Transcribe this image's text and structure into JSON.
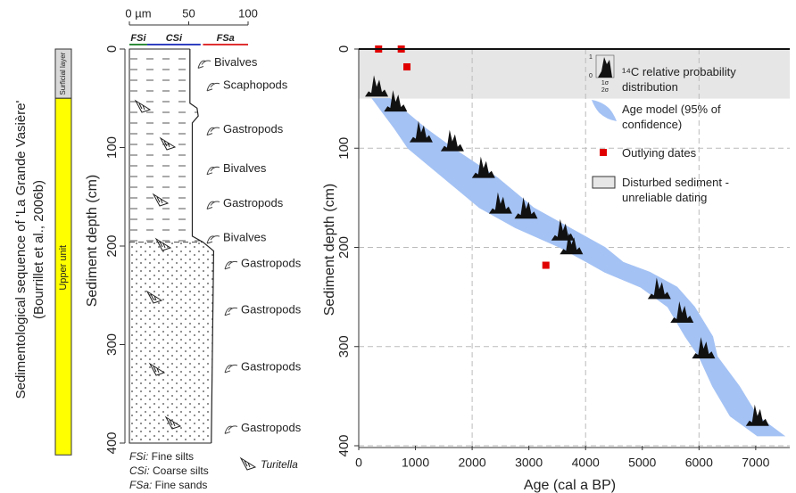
{
  "log_panel": {
    "title_lines": [
      "Sedimentological sequence of  'La Grande Vasière'",
      "(Bourrillet et al., 2006b)"
    ],
    "units": [
      {
        "label": "Surficial layer",
        "top": 0,
        "bottom": 50,
        "color": "#d9d9d9"
      },
      {
        "label": "Upper unit",
        "top": 50,
        "bottom": 412,
        "color": "#ffff00"
      }
    ],
    "grain_lim": [
      0,
      100
    ],
    "grain_ticks": [
      {
        "value": 0,
        "label": "0 µm"
      },
      50,
      100
    ],
    "grain_classes": [
      {
        "name": "FSi",
        "color": "#2e8b3a",
        "range": [
          0,
          15
        ]
      },
      {
        "name": "CSi",
        "color": "#3040c0",
        "range": [
          15,
          60
        ]
      },
      {
        "name": "FSa",
        "color": "#e03030",
        "range": [
          62,
          100
        ]
      }
    ],
    "depth_label": "Sediment depth (cm)",
    "depth_lim": [
      0,
      400
    ],
    "depth_ticks": [
      0,
      100,
      200,
      300,
      400
    ],
    "sand_top": 196,
    "grain_profile": {
      "depth": [
        0,
        55,
        60,
        68,
        75,
        190,
        196,
        205,
        300,
        400
      ],
      "size": [
        51,
        51,
        57,
        58,
        53,
        53,
        62,
        71,
        70,
        69
      ]
    },
    "fossils": [
      {
        "label": "Bivalves",
        "depth": 14
      },
      {
        "label": "Scaphopods",
        "depth": 37
      },
      {
        "label": "Gastropods",
        "depth": 82
      },
      {
        "label": "Bivalves",
        "depth": 122
      },
      {
        "label": "Gastropods",
        "depth": 157
      },
      {
        "label": "Bivalves",
        "depth": 192
      },
      {
        "label": "Gastropods",
        "depth": 218
      },
      {
        "label": "Gastropods",
        "depth": 265
      },
      {
        "label": "Gastropods",
        "depth": 323
      },
      {
        "label": "Gastropods",
        "depth": 385
      }
    ],
    "legend": [
      {
        "abbr": "FSi:",
        "text": " Fine silts"
      },
      {
        "abbr": "CSi:",
        "text": " Coarse silts"
      },
      {
        "abbr": "FSa:",
        "text": " Fine sands"
      }
    ],
    "turitella": "Turitella"
  },
  "chart_data": {
    "type": "area",
    "xlabel": "Age (cal a BP)",
    "ylabel": "Sediment depth (cm)",
    "xlim": [
      0,
      7600
    ],
    "xticks": [
      0,
      1000,
      2000,
      3000,
      4000,
      5000,
      6000,
      7000
    ],
    "x_grid": [
      2000,
      4000,
      6000
    ],
    "ylim": [
      0,
      400
    ],
    "yticks": [
      0,
      100,
      200,
      300,
      400
    ],
    "disturbed": {
      "name": "Disturbed sediment - unreliable dating",
      "depth": [
        0,
        50
      ],
      "color": "#e6e6e6"
    },
    "age_model": {
      "name": "Age model (95% of confidence)",
      "color": "#a4c2f4",
      "depth": [
        50,
        80,
        100,
        130,
        160,
        180,
        200,
        215,
        225,
        240,
        260,
        290,
        310,
        340,
        370,
        390
      ],
      "age_min": [
        240,
        630,
        870,
        1500,
        2130,
        2760,
        3550,
        4030,
        4340,
        4970,
        5450,
        5760,
        6000,
        6240,
        6550,
        7030
      ],
      "age_max": [
        550,
        1180,
        1660,
        2450,
        3080,
        3710,
        4340,
        4660,
        5130,
        5610,
        5920,
        6240,
        6320,
        6710,
        7030,
        7500
      ]
    },
    "outliers": {
      "name": "Outlying dates",
      "color": "#e00000",
      "age": [
        350,
        750,
        850,
        3300
      ],
      "depth": [
        0,
        0,
        18,
        218
      ]
    },
    "radiocarbon": {
      "name": "¹⁴C relative probability distribution",
      "icon_labels": [
        "1",
        "0",
        "1σ",
        "2σ"
      ],
      "age": [
        315,
        650,
        1100,
        1650,
        2200,
        2500,
        2950,
        3600,
        3750,
        5300,
        5700,
        6080,
        7030
      ],
      "depth": [
        48,
        63,
        94,
        103,
        130,
        166,
        171,
        193,
        207,
        252,
        276,
        312,
        380
      ]
    }
  }
}
